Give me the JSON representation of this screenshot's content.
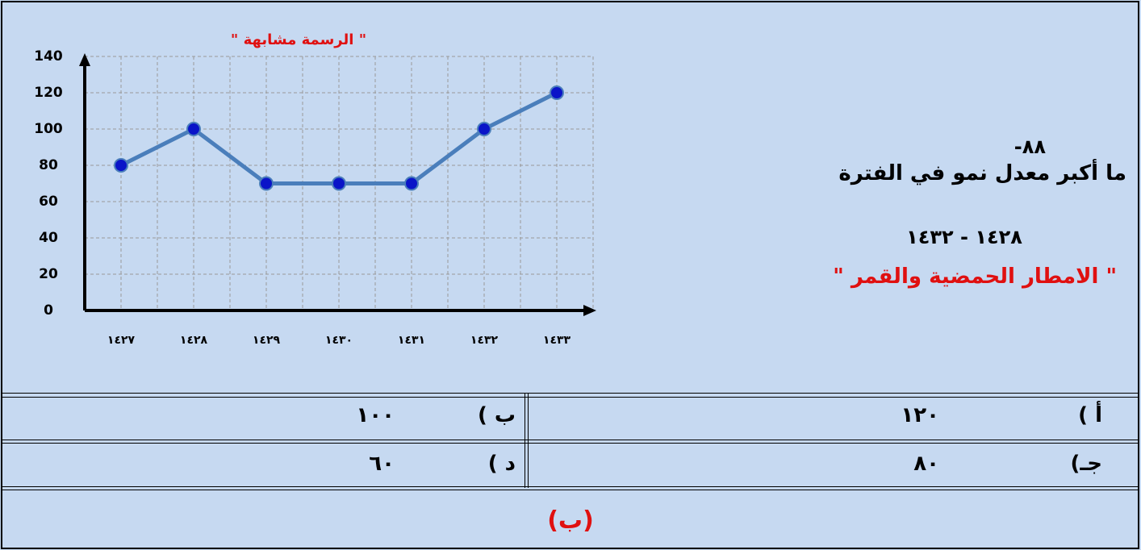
{
  "question": {
    "number": "٨٨-",
    "text": "ما أكبر معدل نمو في الفترة",
    "period": "١٤٢٨ - ١٤٣٢",
    "topic": "\" الامطار الحمضية والقمر \""
  },
  "chart_data": {
    "type": "line",
    "title": "\" الرسمة مشابهة \"",
    "categories": [
      "١٤٢٧",
      "١٤٢٨",
      "١٤٢٩",
      "١٤٣٠",
      "١٤٣١",
      "١٤٣٢",
      "١٤٣٣"
    ],
    "series": [
      {
        "color": "#4a7ebb",
        "marker_color": "#0a14c8",
        "values": [
          80,
          100,
          70,
          70,
          70,
          100,
          120
        ]
      }
    ],
    "ylim": [
      0,
      140
    ],
    "yticks": [
      0,
      20,
      40,
      60,
      80,
      100,
      120,
      140
    ],
    "grid": true
  },
  "options": [
    {
      "letter": "أ )",
      "value": "١٢٠"
    },
    {
      "letter": "ب )",
      "value": "١٠٠"
    },
    {
      "letter": "جـ)",
      "value": "٨٠"
    },
    {
      "letter": "د )",
      "value": "٦٠"
    }
  ],
  "answer": "(ب)"
}
